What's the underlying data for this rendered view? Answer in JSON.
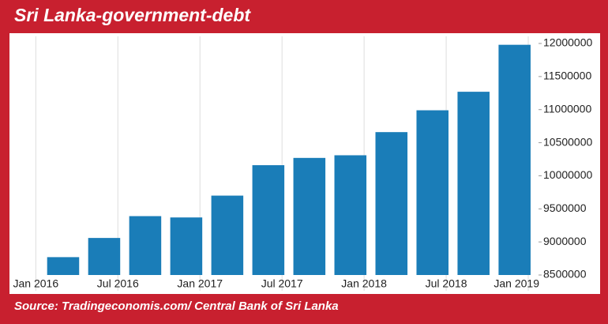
{
  "chart_data": {
    "type": "bar",
    "title": "Sri Lanka-government-debt",
    "source": "Source: Tradingeconomis.com/ Central Bank of Sri Lanka",
    "x": [
      2,
      5,
      8,
      11,
      14,
      17,
      20,
      23,
      26,
      29,
      32,
      35
    ],
    "values": [
      8770000,
      9060000,
      9390000,
      9370000,
      9700000,
      10160000,
      10270000,
      10310000,
      10660000,
      10990000,
      11270000,
      11980000
    ],
    "color": "#1a7db8",
    "xlim": [
      -1.75,
      36.75
    ],
    "xticks": [
      {
        "value": 0,
        "label": "Jan 2016"
      },
      {
        "value": 6,
        "label": "Jul 2016"
      },
      {
        "value": 12,
        "label": "Jan 2017"
      },
      {
        "value": 18,
        "label": "Jul 2017"
      },
      {
        "value": 24,
        "label": "Jan 2018"
      },
      {
        "value": 30,
        "label": "Jul 2018"
      },
      {
        "value": 36,
        "label": "Jan 2019"
      }
    ],
    "ylim": [
      8500000,
      12000000
    ],
    "yticks": [
      8500000,
      9000000,
      9500000,
      10000000,
      10500000,
      11000000,
      11500000,
      12000000
    ],
    "grid": true
  }
}
